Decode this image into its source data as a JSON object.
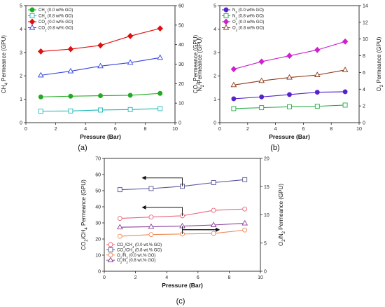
{
  "chart_data": [
    {
      "type": "line",
      "panel_label": "(a)",
      "xlabel": "Pressure (Bar)",
      "ylabel": "CH4 Permeance (GPU)",
      "y2label": "CO2 Permeance (GPU)",
      "xlim": [
        0,
        10
      ],
      "ylim": [
        0,
        5
      ],
      "y2lim": [
        0,
        60
      ],
      "xticks": [
        "0",
        "2",
        "4",
        "6",
        "8",
        "10"
      ],
      "yticks": [
        "0",
        "1",
        "2",
        "3",
        "4",
        "5"
      ],
      "y2ticks": [
        "0",
        "10",
        "20",
        "30",
        "40",
        "50",
        "60"
      ],
      "legend_position": "top-left",
      "series": [
        {
          "name": "CH4 (0.0 wt% GO)",
          "axis": "left",
          "color": "#22aa22",
          "marker": "circle-filled",
          "x": [
            1,
            3,
            5,
            7,
            9
          ],
          "y": [
            1.1,
            1.13,
            1.15,
            1.17,
            1.25
          ]
        },
        {
          "name": "CH4 (0.8 wt% GO)",
          "axis": "left",
          "color": "#22b8b8",
          "marker": "square-open",
          "x": [
            1,
            3,
            5,
            7,
            9
          ],
          "y": [
            0.49,
            0.5,
            0.54,
            0.56,
            0.6
          ]
        },
        {
          "name": "CO2 (0.0 wt% GO)",
          "axis": "right",
          "color": "#e01010",
          "marker": "diamond-filled",
          "x": [
            1,
            3,
            5,
            7,
            9
          ],
          "y": [
            36.5,
            37.7,
            39.6,
            44.4,
            48.3
          ]
        },
        {
          "name": "CO2 (0.8 wt% GO)",
          "axis": "right",
          "color": "#3344dd",
          "marker": "triangle-open",
          "x": [
            1,
            3,
            5,
            7,
            9
          ],
          "y": [
            24.3,
            26.4,
            29.0,
            30.8,
            33.3
          ]
        }
      ]
    },
    {
      "type": "line",
      "panel_label": "(b)",
      "xlabel": "Pressure (Bar)",
      "ylabel": "N2 Permeance (GPU)",
      "y2label": "O2 Permeance (GPU)",
      "xlim": [
        0,
        10
      ],
      "ylim": [
        0,
        5
      ],
      "y2lim": [
        0,
        14
      ],
      "xticks": [
        "0",
        "2",
        "4",
        "6",
        "8",
        "10"
      ],
      "yticks": [
        "0",
        "1",
        "2",
        "3",
        "4",
        "5"
      ],
      "y2ticks": [
        "0",
        "2",
        "4",
        "6",
        "8",
        "10",
        "12",
        "14"
      ],
      "legend_position": "top-left",
      "series": [
        {
          "name": "N2 (0.0 wt% GO)",
          "axis": "left",
          "color": "#5522cc",
          "marker": "circle-filled",
          "x": [
            1,
            3,
            5,
            7,
            9
          ],
          "y": [
            1.02,
            1.1,
            1.2,
            1.3,
            1.32
          ]
        },
        {
          "name": "N2 (0.8 wt% GO)",
          "axis": "left",
          "color": "#22aa44",
          "marker": "square-open",
          "x": [
            1,
            3,
            5,
            7,
            9
          ],
          "y": [
            0.6,
            0.64,
            0.68,
            0.7,
            0.75
          ]
        },
        {
          "name": "O2 (0.0 wt% GO)",
          "axis": "right",
          "color": "#cc22cc",
          "marker": "diamond-filled",
          "x": [
            1,
            3,
            5,
            7,
            9
          ],
          "y": [
            6.4,
            7.3,
            8.0,
            8.7,
            9.7
          ]
        },
        {
          "name": "O2 (0.8 wt% GO)",
          "axis": "right",
          "color": "#8b3a1a",
          "marker": "triangle-open",
          "x": [
            1,
            3,
            5,
            7,
            9
          ],
          "y": [
            4.5,
            5.0,
            5.4,
            5.7,
            6.3
          ]
        }
      ]
    },
    {
      "type": "line",
      "panel_label": "(c)",
      "xlabel": "Pressure (Bar)",
      "ylabel": "CO2/CH4 Permeance (GPU)",
      "y2label": "O2/N2 Permeance (GPU)",
      "xlim": [
        0,
        10
      ],
      "ylim": [
        0,
        70
      ],
      "y2lim": [
        0,
        20
      ],
      "xticks": [
        "0",
        "2",
        "4",
        "6",
        "8",
        "10"
      ],
      "yticks": [
        "0",
        "10",
        "20",
        "30",
        "40",
        "50",
        "60",
        "70"
      ],
      "y2ticks": [
        "0",
        "5",
        "10",
        "15",
        "20"
      ],
      "legend_position": "bottom-left",
      "series": [
        {
          "name": "CO2/CH4 (0.0 wt.% GO)",
          "axis": "left",
          "color": "#e8667a",
          "marker": "circle-open",
          "x": [
            1,
            3,
            5,
            7,
            9
          ],
          "y": [
            32.8,
            33.6,
            34.4,
            37.8,
            38.6
          ]
        },
        {
          "name": "CO2/CH4 (0.8 wt.% GO)",
          "axis": "left",
          "color": "#555599",
          "marker": "square-open",
          "x": [
            1,
            3,
            5,
            7,
            9
          ],
          "y": [
            50.6,
            51.3,
            52.7,
            55.0,
            56.8
          ]
        },
        {
          "name": "O2/N2 (0.0 wt.% GO)",
          "axis": "right",
          "color": "#ee8855",
          "marker": "circle-open",
          "x": [
            1,
            3,
            5,
            7,
            9
          ],
          "y": [
            6.2,
            6.5,
            6.6,
            6.7,
            7.3
          ]
        },
        {
          "name": "O2/N2 (0.8 wt.% GO)",
          "axis": "right",
          "color": "#884499",
          "marker": "triangle-open",
          "x": [
            1,
            3,
            5,
            7,
            9
          ],
          "y": [
            7.8,
            7.9,
            8.0,
            8.2,
            8.5
          ]
        }
      ],
      "annotations": [
        {
          "type": "arrow",
          "direction": "left",
          "target_axis": "left",
          "at_series": "CO2/CH4 (0.8 wt.% GO)"
        },
        {
          "type": "arrow",
          "direction": "left",
          "target_axis": "left",
          "at_series": "CO2/CH4 (0.0 wt.% GO)"
        },
        {
          "type": "arrow",
          "direction": "right",
          "target_axis": "right",
          "at_series": "O2/N2 (0.0 wt.% GO)"
        },
        {
          "type": "arrow",
          "direction": "right",
          "target_axis": "right",
          "at_series": "O2/N2 (0.8 wt.% GO)"
        }
      ]
    }
  ]
}
